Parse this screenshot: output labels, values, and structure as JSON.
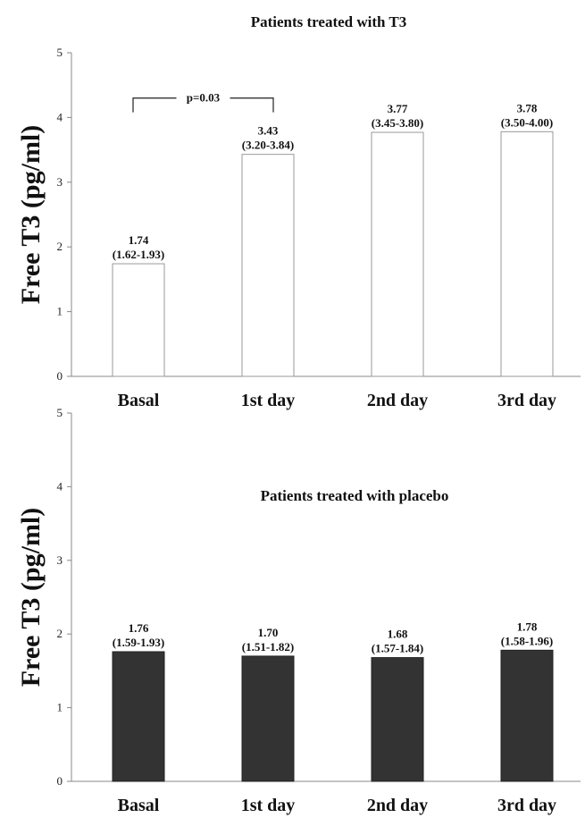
{
  "chart_data": [
    {
      "type": "bar",
      "title": "Patients treated with T3",
      "ylabel": "Free T3 (pg/ml)",
      "ylim": [
        0,
        5
      ],
      "yticks": [
        "0",
        "1",
        "2",
        "3",
        "4",
        "5"
      ],
      "categories": [
        "Basal",
        "1st day",
        "2nd day",
        "3rd day"
      ],
      "values": [
        1.74,
        3.43,
        3.77,
        3.78
      ],
      "value_labels": [
        "1.74",
        "3.43",
        "3.77",
        "3.78"
      ],
      "range_labels": [
        "(1.62-1.93)",
        "(3.20-3.84)",
        "(3.45-3.80)",
        "(3.50-4.00)"
      ],
      "bar_fill": "#ffffff",
      "bar_stroke": "#999999",
      "annotation": {
        "text": "p=0.03",
        "from": "Basal",
        "to": "1st day"
      }
    },
    {
      "type": "bar",
      "title": "Patients treated with placebo",
      "ylabel": "Free T3 (pg/ml)",
      "ylim": [
        0,
        5
      ],
      "yticks": [
        "0",
        "1",
        "2",
        "3",
        "4",
        "5"
      ],
      "categories": [
        "Basal",
        "1st day",
        "2nd day",
        "3rd day"
      ],
      "values": [
        1.76,
        1.7,
        1.68,
        1.78
      ],
      "value_labels": [
        "1.76",
        "1.70",
        "1.68",
        "1.78"
      ],
      "range_labels": [
        "(1.59-1.93)",
        "(1.51-1.82)",
        "(1.57-1.84)",
        "(1.58-1.96)"
      ],
      "bar_fill": "#333333",
      "bar_stroke": "#222222"
    }
  ]
}
